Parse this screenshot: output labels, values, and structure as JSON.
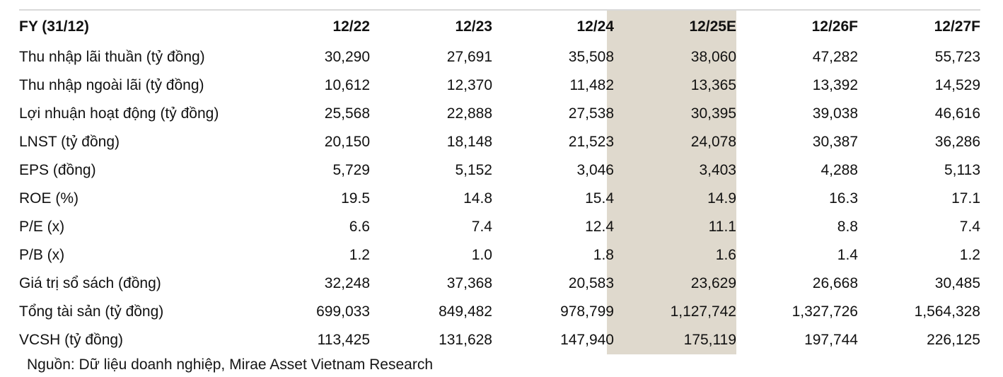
{
  "chart_data": {
    "type": "table",
    "title": "FY (31/12)",
    "columns": [
      "FY (31/12)",
      "12/22",
      "12/23",
      "12/24",
      "12/25E",
      "12/26F",
      "12/27F"
    ],
    "highlight_column": "12/25E",
    "rows": [
      {
        "label": "Thu nhập lãi thuần (tỷ đồng)",
        "values": [
          "30,290",
          "27,691",
          "35,508",
          "38,060",
          "47,282",
          "55,723"
        ]
      },
      {
        "label": "Thu nhập ngoài lãi (tỷ đồng)",
        "values": [
          "10,612",
          "12,370",
          "11,482",
          "13,365",
          "13,392",
          "14,529"
        ]
      },
      {
        "label": "Lợi nhuận hoạt động (tỷ đồng)",
        "values": [
          "25,568",
          "22,888",
          "27,538",
          "30,395",
          "39,038",
          "46,616"
        ]
      },
      {
        "label": "LNST (tỷ đồng)",
        "values": [
          "20,150",
          "18,148",
          "21,523",
          "24,078",
          "30,387",
          "36,286"
        ]
      },
      {
        "label": "EPS (đồng)",
        "values": [
          "5,729",
          "5,152",
          "3,046",
          "3,403",
          "4,288",
          "5,113"
        ]
      },
      {
        "label": "ROE (%)",
        "values": [
          "19.5",
          "14.8",
          "15.4",
          "14.9",
          "16.3",
          "17.1"
        ]
      },
      {
        "label": "P/E (x)",
        "values": [
          "6.6",
          "7.4",
          "12.4",
          "11.1",
          "8.8",
          "7.4"
        ]
      },
      {
        "label": "P/B (x)",
        "values": [
          "1.2",
          "1.0",
          "1.8",
          "1.6",
          "1.4",
          "1.2"
        ]
      },
      {
        "label": "Giá trị sổ sách (đồng)",
        "values": [
          "32,248",
          "37,368",
          "20,583",
          "23,629",
          "26,668",
          "30,485"
        ]
      },
      {
        "label": "Tổng tài sản (tỷ đồng)",
        "values": [
          "699,033",
          "849,482",
          "978,799",
          "1,127,742",
          "1,327,726",
          "1,564,328"
        ]
      },
      {
        "label": "VCSH (tỷ đồng)",
        "values": [
          "113,425",
          "131,628",
          "147,940",
          "175,119",
          "197,744",
          "226,125"
        ]
      }
    ],
    "source_note": "Nguồn: Dữ liệu doanh nghiệp, Mirae Asset Vietnam Research"
  },
  "colors": {
    "highlight_column_bg": "#dfd9cd",
    "top_rule": "#d9d9d9",
    "text": "#111111"
  }
}
